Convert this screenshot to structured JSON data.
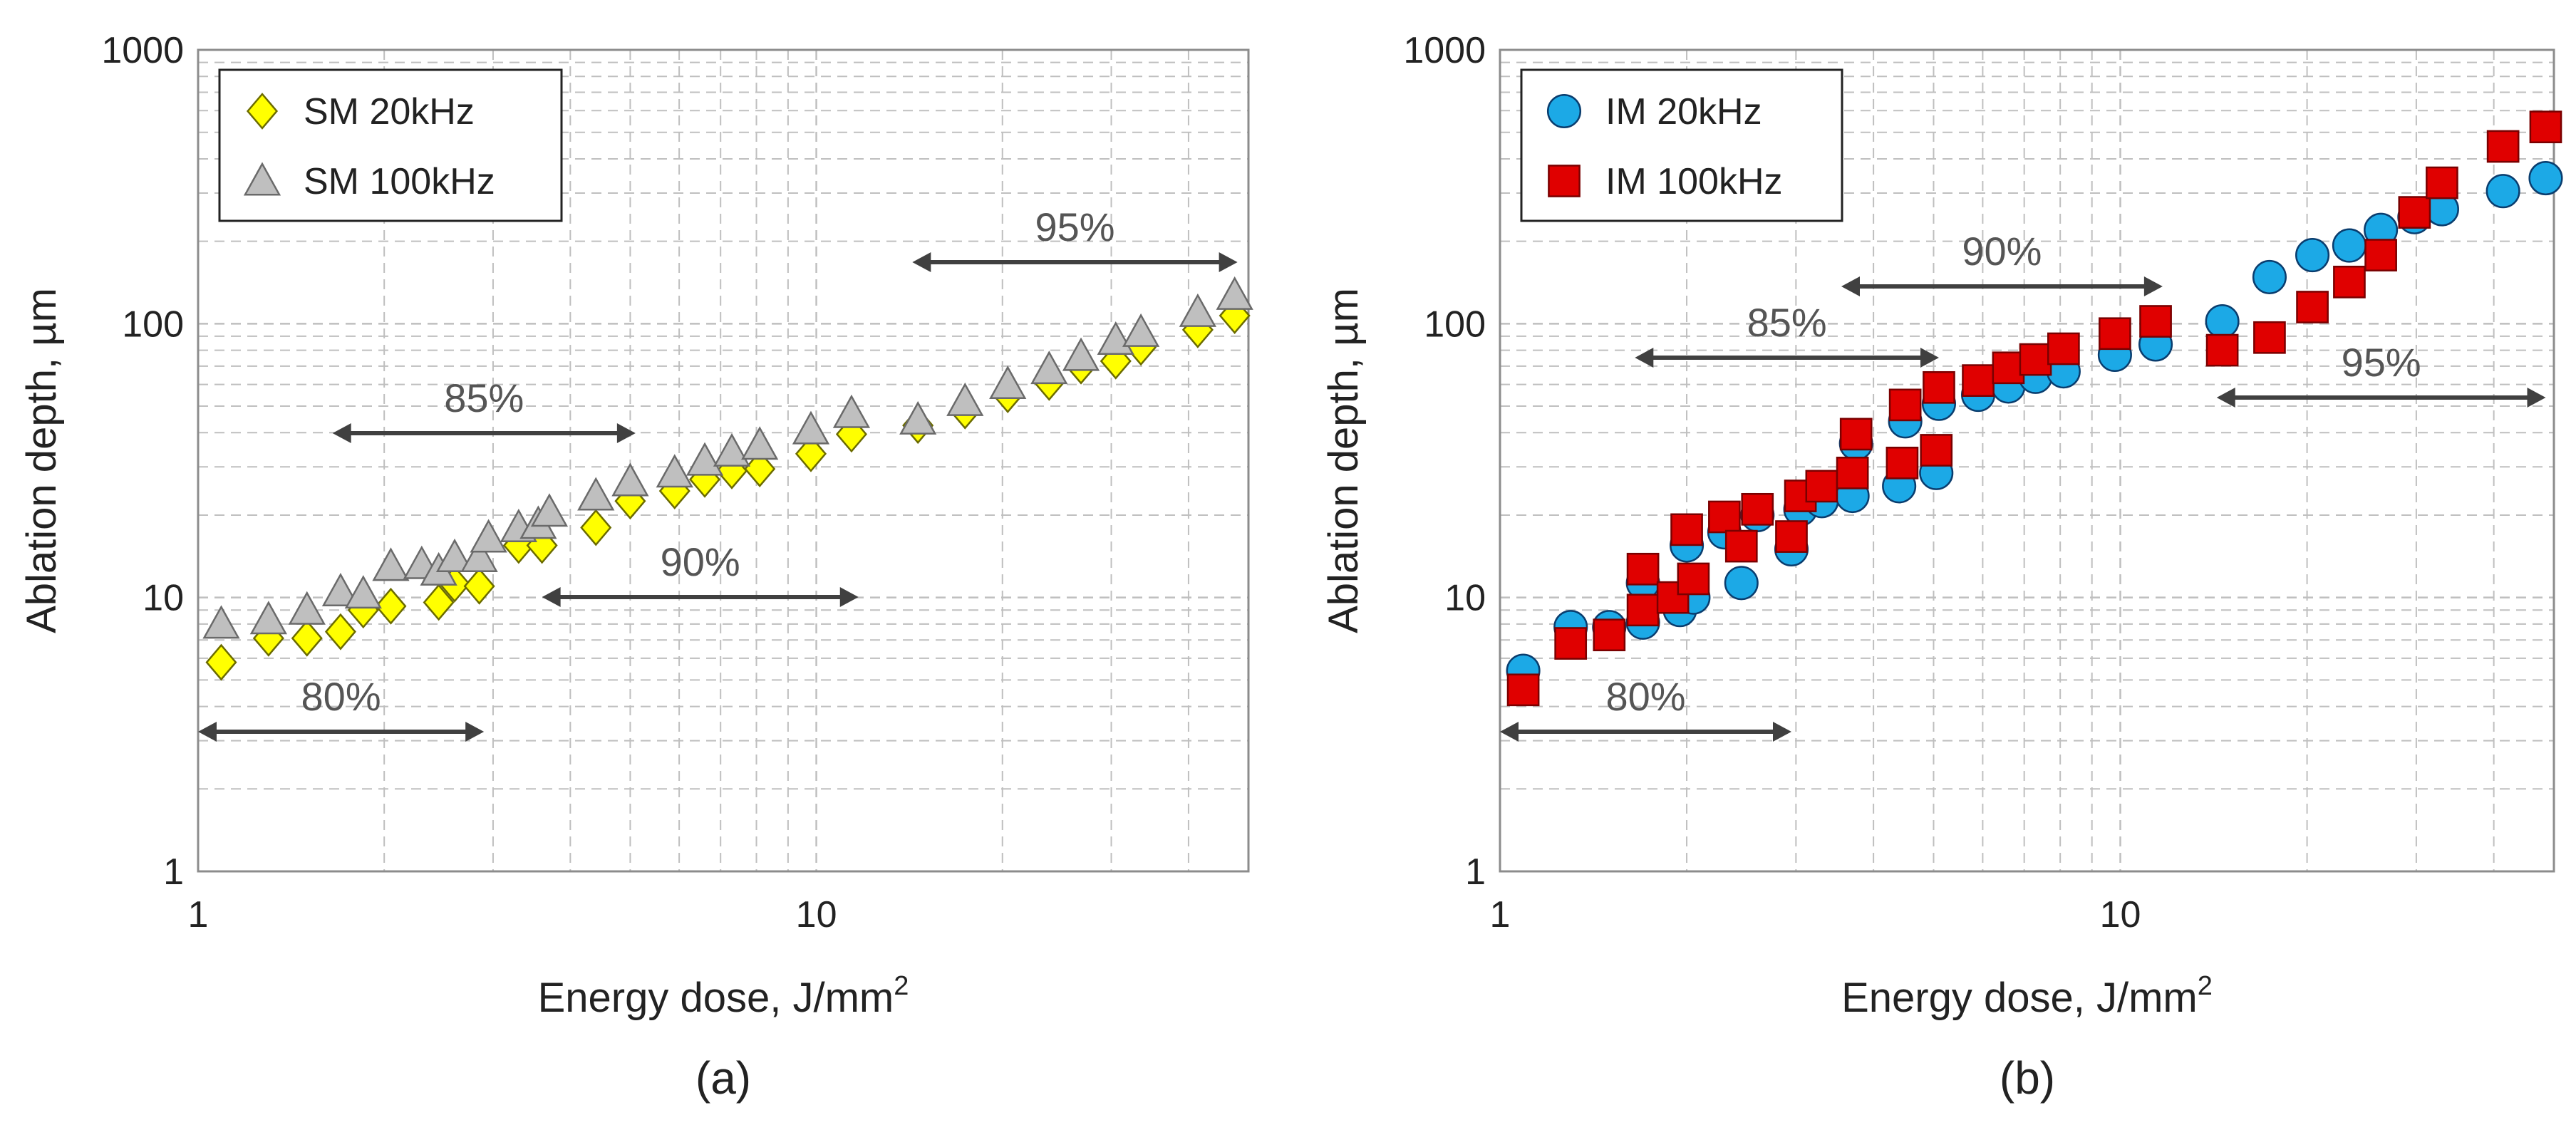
{
  "colors": {
    "sm20": "#FFFF00",
    "sm100": "#BFBFBF",
    "im20": "#1CA9E6",
    "im100": "#E00000",
    "arrow": "#404040",
    "annot": "#555555",
    "grid": "#BFBFBF"
  },
  "chart_data": [
    {
      "type": "scatter",
      "subplot_label": "(a)",
      "xlabel": "Energy dose, J/mm",
      "xlabel_sup": "2",
      "ylabel": "Ablation depth, µm",
      "xscale": "log",
      "yscale": "log",
      "xlim": [
        1,
        50
      ],
      "ylim": [
        1,
        1000
      ],
      "x_ticks": [
        "1",
        "10"
      ],
      "y_ticks": [
        "1",
        "10",
        "100",
        "1000"
      ],
      "grid": true,
      "legend_position": "top-left",
      "series": [
        {
          "name": "SM 20kHz",
          "marker": "diamond",
          "x": [
            1.09,
            1.3,
            1.5,
            1.7,
            1.85,
            2.05,
            2.45,
            2.6,
            2.85,
            3.3,
            3.6,
            4.4,
            5.0,
            5.9,
            6.6,
            7.3,
            8.1,
            9.8,
            11.4,
            14.6,
            17.4,
            20.4,
            23.8,
            26.8,
            30.5,
            33.5,
            41.4,
            47.5
          ],
          "y": [
            5.8,
            7.1,
            7.1,
            7.5,
            9.0,
            9.3,
            9.6,
            11.2,
            11.0,
            15.5,
            15.5,
            18.0,
            22.5,
            24.5,
            27.0,
            29.0,
            29.5,
            33.5,
            39.5,
            42.5,
            48.0,
            55.0,
            61.0,
            70.0,
            73.0,
            82.0,
            95.0,
            107.0
          ]
        },
        {
          "name": "SM 100kHz",
          "marker": "triangle",
          "x": [
            1.09,
            1.3,
            1.5,
            1.7,
            1.85,
            2.05,
            2.3,
            2.45,
            2.6,
            2.85,
            2.95,
            3.3,
            3.55,
            3.7,
            4.4,
            5.0,
            5.9,
            6.6,
            7.3,
            8.1,
            9.8,
            11.4,
            14.6,
            17.4,
            20.4,
            23.8,
            26.8,
            30.5,
            33.5,
            41.4,
            47.5
          ],
          "y": [
            8.0,
            8.3,
            9.0,
            10.5,
            10.3,
            13.0,
            13.2,
            12.5,
            14.0,
            14.0,
            16.5,
            18.0,
            18.5,
            20.5,
            23.5,
            26.5,
            28.5,
            31.5,
            34.0,
            36.0,
            41.0,
            47.0,
            44.5,
            52.0,
            60.0,
            68.0,
            76.0,
            87.0,
            93.0,
            110.0,
            127.0
          ]
        }
      ],
      "annotations": [
        {
          "text": "80%",
          "x_range": [
            1.0,
            2.9
          ]
        },
        {
          "text": "85%",
          "x_range": [
            1.65,
            5.1
          ]
        },
        {
          "text": "90%",
          "x_range": [
            3.6,
            11.7
          ]
        },
        {
          "text": "95%",
          "x_range": [
            14.3,
            48.0
          ]
        }
      ]
    },
    {
      "type": "scatter",
      "subplot_label": "(b)",
      "xlabel": "Energy dose, J/mm",
      "xlabel_sup": "2",
      "ylabel": "Ablation depth, µm",
      "xscale": "log",
      "yscale": "log",
      "xlim": [
        1,
        50
      ],
      "ylim": [
        1,
        1000
      ],
      "x_ticks": [
        "1",
        "10"
      ],
      "y_ticks": [
        "1",
        "10",
        "100",
        "1000"
      ],
      "grid": true,
      "legend_position": "top-left",
      "series": [
        {
          "name": "IM 20kHz",
          "marker": "circle",
          "x": [
            1.09,
            1.3,
            1.5,
            1.7,
            1.7,
            1.95,
            2.0,
            2.05,
            2.3,
            2.45,
            2.6,
            2.95,
            3.05,
            3.3,
            3.7,
            3.75,
            4.4,
            4.5,
            5.05,
            5.1,
            5.9,
            6.6,
            7.3,
            8.1,
            9.8,
            11.4,
            14.6,
            17.4,
            20.4,
            23.4,
            26.3,
            29.8,
            33.0,
            41.4,
            48.5
          ],
          "y": [
            5.4,
            7.8,
            7.8,
            8.1,
            11.3,
            9.0,
            15.5,
            10.0,
            17.3,
            11.3,
            20.0,
            15.0,
            21.0,
            22.5,
            23.5,
            36.5,
            25.5,
            44.0,
            28.5,
            51.0,
            55.0,
            59.0,
            64.0,
            67.0,
            77.0,
            84.0,
            102.0,
            148.0,
            178.0,
            193.0,
            220.0,
            245.0,
            262.0,
            305.0,
            340.0
          ]
        },
        {
          "name": "IM 100kHz",
          "marker": "square",
          "x": [
            1.09,
            1.3,
            1.5,
            1.7,
            1.7,
            1.9,
            2.0,
            2.05,
            2.3,
            2.45,
            2.6,
            2.95,
            3.05,
            3.3,
            3.7,
            3.75,
            4.45,
            4.5,
            5.05,
            5.1,
            5.9,
            6.6,
            7.3,
            8.1,
            9.8,
            11.4,
            14.6,
            17.4,
            20.4,
            23.4,
            26.3,
            29.8,
            33.0,
            41.4,
            48.5
          ],
          "y": [
            4.6,
            6.8,
            7.3,
            9.0,
            12.7,
            10.0,
            17.7,
            11.7,
            19.7,
            15.4,
            21.0,
            16.7,
            23.5,
            25.5,
            28.5,
            39.5,
            31.0,
            50.5,
            34.5,
            58.5,
            62.0,
            69.0,
            74.0,
            81.0,
            92.0,
            102.0,
            80.0,
            89.0,
            115.0,
            142.0,
            178.0,
            255.0,
            327.0,
            444.0,
            523.0
          ]
        }
      ],
      "annotations": [
        {
          "text": "80%",
          "x_range": [
            1.0,
            2.95
          ]
        },
        {
          "text": "85%",
          "x_range": [
            1.65,
            5.1
          ]
        },
        {
          "text": "90%",
          "x_range": [
            3.55,
            11.7
          ]
        },
        {
          "text": "95%",
          "x_range": [
            14.3,
            48.5
          ]
        }
      ]
    }
  ]
}
